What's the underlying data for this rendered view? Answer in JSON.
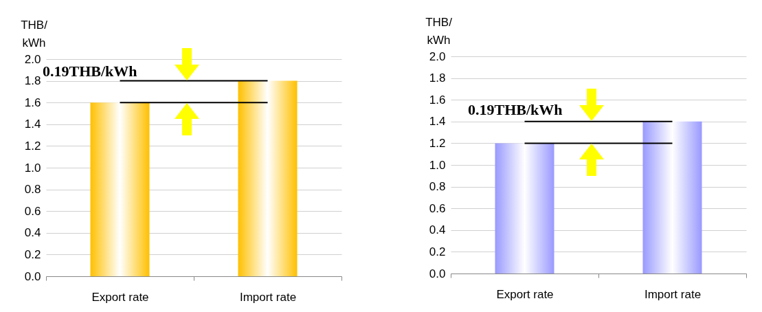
{
  "chart_data": [
    {
      "type": "bar",
      "ylabel": "THB/ kWh",
      "categories": [
        "Export rate",
        "Import rate"
      ],
      "values": [
        1.6,
        1.8
      ],
      "color": "#ffc000",
      "ylim": [
        0,
        2
      ],
      "yticks": [
        {
          "value": 0,
          "label": "0.0"
        },
        0.2,
        0.4,
        0.6,
        0.8,
        {
          "value": 1,
          "label": "1.0"
        },
        1.2,
        1.4,
        1.6,
        1.8,
        {
          "value": 2,
          "label": "2.0"
        }
      ],
      "grid": "y",
      "ref_lines": [
        {
          "axis": "y",
          "value": 1.6
        },
        {
          "axis": "y",
          "value": 1.8
        }
      ],
      "annotations": [
        "0.19THB/kWh"
      ]
    },
    {
      "type": "bar",
      "ylabel": "THB/ kWh",
      "categories": [
        "Export rate",
        "Import rate"
      ],
      "values": [
        1.2,
        1.4
      ],
      "color": "#9999ff",
      "ylim": [
        0,
        2
      ],
      "yticks": [
        {
          "value": 0,
          "label": "0.0"
        },
        0.2,
        0.4,
        0.6,
        0.8,
        {
          "value": 1,
          "label": "1.0"
        },
        1.2,
        1.4,
        1.6,
        1.8,
        {
          "value": 2,
          "label": "2.0"
        }
      ],
      "grid": "y",
      "ref_lines": [
        {
          "axis": "y",
          "value": 1.2
        },
        {
          "axis": "y",
          "value": 1.4
        }
      ],
      "annotations": [
        "0.19THB/kWh"
      ]
    }
  ]
}
